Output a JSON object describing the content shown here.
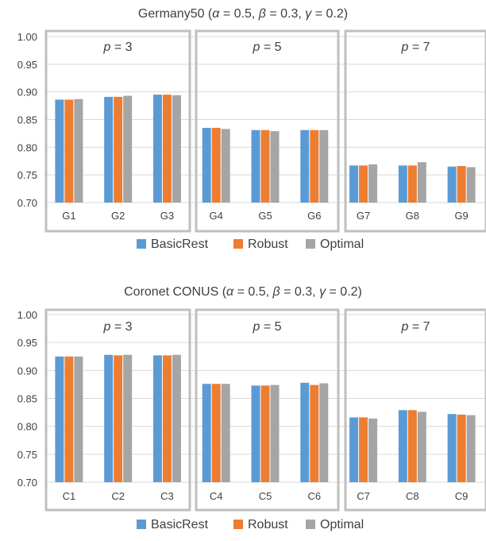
{
  "colors": {
    "BasicRest": "#5b9bd5",
    "Robust": "#ed7d31",
    "Optimal": "#a5a5a5",
    "group_box": "#bfbfbf",
    "grid": "#d9d9d9",
    "text": "#404040"
  },
  "chart_data": [
    {
      "type": "bar",
      "title": "Germany50 (α = 0.5, β = 0.3, γ = 0.2)",
      "title_parts": [
        "Germany50 (",
        "α",
        " = 0.5, ",
        "β",
        " = 0.3, ",
        "γ",
        " = 0.2)"
      ],
      "xlabel": "",
      "ylabel": "",
      "ylim": [
        0.7,
        1.0
      ],
      "yticks": [
        "0.70",
        "0.75",
        "0.80",
        "0.85",
        "0.90",
        "0.95",
        "1.00"
      ],
      "grid": true,
      "legend_position": "bottom",
      "categories": [
        "G1",
        "G2",
        "G3",
        "G4",
        "G5",
        "G6",
        "G7",
        "G8",
        "G9"
      ],
      "groups": [
        {
          "label_var": "p",
          "label_rest": " = 3"
        },
        {
          "label_var": "p",
          "label_rest": " = 5"
        },
        {
          "label_var": "p",
          "label_rest": " = 7"
        }
      ],
      "series": [
        {
          "name": "BasicRest",
          "values": [
            0.886,
            0.891,
            0.895,
            0.835,
            0.831,
            0.831,
            0.767,
            0.767,
            0.765
          ]
        },
        {
          "name": "Robust",
          "values": [
            0.886,
            0.891,
            0.895,
            0.835,
            0.831,
            0.831,
            0.767,
            0.767,
            0.766
          ]
        },
        {
          "name": "Optimal",
          "values": [
            0.887,
            0.893,
            0.894,
            0.833,
            0.829,
            0.831,
            0.769,
            0.773,
            0.764
          ]
        }
      ]
    },
    {
      "type": "bar",
      "title": "Coronet CONUS (α = 0.5, β = 0.3, γ = 0.2)",
      "title_parts": [
        "Coronet CONUS (",
        "α",
        " = 0.5, ",
        "β",
        " = 0.3, ",
        "γ",
        " = 0.2)"
      ],
      "xlabel": "",
      "ylabel": "",
      "ylim": [
        0.7,
        1.0
      ],
      "yticks": [
        "0.70",
        "0.75",
        "0.80",
        "0.85",
        "0.90",
        "0.95",
        "1.00"
      ],
      "grid": true,
      "legend_position": "bottom",
      "categories": [
        "C1",
        "C2",
        "C3",
        "C4",
        "C5",
        "C6",
        "C7",
        "C8",
        "C9"
      ],
      "groups": [
        {
          "label_var": "p",
          "label_rest": " = 3"
        },
        {
          "label_var": "p",
          "label_rest": " = 5"
        },
        {
          "label_var": "p",
          "label_rest": " = 7"
        }
      ],
      "series": [
        {
          "name": "BasicRest",
          "values": [
            0.925,
            0.928,
            0.927,
            0.876,
            0.873,
            0.878,
            0.816,
            0.829,
            0.822
          ]
        },
        {
          "name": "Robust",
          "values": [
            0.925,
            0.927,
            0.927,
            0.876,
            0.873,
            0.874,
            0.816,
            0.829,
            0.821
          ]
        },
        {
          "name": "Optimal",
          "values": [
            0.925,
            0.928,
            0.928,
            0.876,
            0.874,
            0.877,
            0.814,
            0.826,
            0.82
          ]
        }
      ]
    }
  ]
}
